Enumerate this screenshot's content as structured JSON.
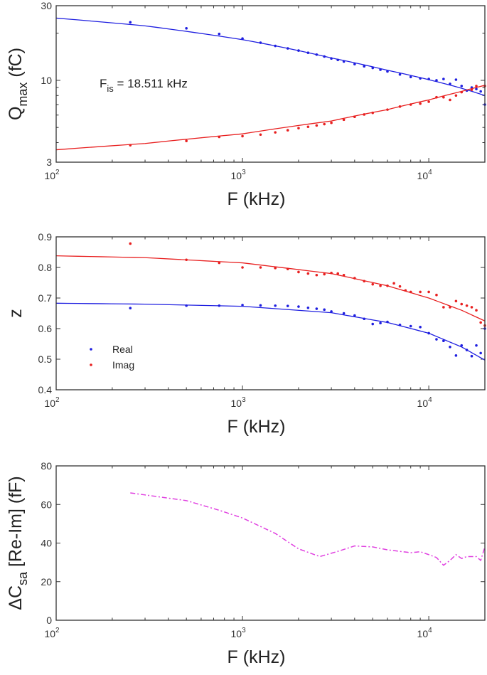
{
  "chart_data": [
    {
      "type": "scatter",
      "xlabel": "F (kHz)",
      "ylabel": {
        "main": "Q",
        "sub": "max",
        "unit": " (fC)"
      },
      "xscale": "log",
      "yscale": "log",
      "xlim": [
        100,
        20000
      ],
      "ylim": [
        3,
        30
      ],
      "xticks": [
        {
          "v": 100,
          "base": "10",
          "exp": "2"
        },
        {
          "v": 1000,
          "base": "10",
          "exp": "3"
        },
        {
          "v": 10000,
          "base": "10",
          "exp": "4"
        }
      ],
      "yticks": [
        "3",
        "10",
        "30"
      ],
      "annotation": {
        "main": "F",
        "sub": "is",
        "rest": " = 18.511 kHz"
      },
      "series": [
        {
          "color": "#1f1fe0",
          "kind": "points",
          "x": [
            250,
            500,
            750,
            1000,
            1250,
            1500,
            1750,
            2000,
            2250,
            2500,
            2750,
            3000,
            3250,
            3500,
            4000,
            4500,
            5000,
            5500,
            6000,
            7000,
            8000,
            9000,
            10000,
            11000,
            12000,
            13000,
            14000,
            15000,
            16000,
            17000,
            18000,
            19000,
            20000
          ],
          "y": [
            23.5,
            21.5,
            19.8,
            18.5,
            17.4,
            16.6,
            16,
            15.5,
            15,
            14.6,
            14.2,
            13.8,
            13.5,
            13.2,
            12.7,
            12.3,
            12,
            11.7,
            11.4,
            10.9,
            10.5,
            10.3,
            10.2,
            10,
            10.2,
            9.5,
            10.1,
            9.2,
            8.6,
            9,
            8.8,
            8.5,
            7
          ]
        },
        {
          "color": "#1f1fe0",
          "kind": "fit",
          "x": [
            100,
            300,
            1000,
            3000,
            6000,
            10000,
            15000,
            20000
          ],
          "y": [
            25,
            22.3,
            18.2,
            13.9,
            11.6,
            10.1,
            8.9,
            8
          ]
        },
        {
          "color": "#e82020",
          "kind": "points",
          "x": [
            250,
            500,
            750,
            1000,
            1250,
            1500,
            1750,
            2000,
            2250,
            2500,
            2750,
            3000,
            3500,
            4000,
            4500,
            5000,
            6000,
            7000,
            8000,
            9000,
            10000,
            11000,
            12000,
            13000,
            14000,
            15000,
            17000,
            18000,
            20000
          ],
          "y": [
            3.85,
            4.1,
            4.35,
            4.4,
            4.5,
            4.65,
            4.8,
            4.95,
            5.05,
            5.15,
            5.25,
            5.35,
            5.6,
            5.85,
            6.05,
            6.2,
            6.5,
            6.8,
            7,
            7.1,
            7.3,
            7.8,
            7.8,
            7.5,
            8,
            8.4,
            8.7,
            9.2,
            9.2
          ]
        },
        {
          "color": "#e82020",
          "kind": "fit",
          "x": [
            100,
            300,
            1000,
            3000,
            6000,
            10000,
            15000,
            20000
          ],
          "y": [
            3.6,
            3.95,
            4.55,
            5.5,
            6.5,
            7.5,
            8.5,
            9.3
          ]
        }
      ]
    },
    {
      "type": "scatter",
      "xlabel": "F (kHz)",
      "ylabel": {
        "main": "z",
        "sub": "",
        "unit": ""
      },
      "xscale": "log",
      "yscale": "linear",
      "xlim": [
        100,
        20000
      ],
      "ylim": [
        0.4,
        0.9
      ],
      "xticks": [
        {
          "v": 100,
          "base": "10",
          "exp": "2"
        },
        {
          "v": 1000,
          "base": "10",
          "exp": "3"
        },
        {
          "v": 10000,
          "base": "10",
          "exp": "4"
        }
      ],
      "yticks": [
        "0.4",
        "0.5",
        "0.6",
        "0.7",
        "0.8",
        "0.9"
      ],
      "legend": {
        "placement": "lower-left",
        "entries": [
          {
            "name": "Real",
            "color": "#1f1fe0"
          },
          {
            "name": "Imag",
            "color": "#e82020"
          }
        ]
      },
      "series": [
        {
          "name": "Real",
          "color": "#1f1fe0",
          "kind": "points",
          "x": [
            250,
            500,
            750,
            1000,
            1250,
            1500,
            1750,
            2000,
            2250,
            2500,
            2750,
            3000,
            3500,
            4000,
            4500,
            5000,
            5500,
            6000,
            7000,
            8000,
            9000,
            10000,
            11000,
            12000,
            13000,
            14000,
            15000,
            16000,
            17000,
            18000,
            19000,
            20000
          ],
          "y": [
            0.667,
            0.675,
            0.675,
            0.677,
            0.676,
            0.675,
            0.674,
            0.672,
            0.668,
            0.665,
            0.662,
            0.656,
            0.65,
            0.643,
            0.632,
            0.615,
            0.618,
            0.622,
            0.612,
            0.608,
            0.605,
            0.585,
            0.565,
            0.56,
            0.54,
            0.512,
            0.545,
            0.53,
            0.51,
            0.545,
            0.52,
            0.6
          ]
        },
        {
          "color": "#1f1fe0",
          "kind": "fit",
          "x": [
            100,
            300,
            1000,
            3000,
            6000,
            10000,
            15000,
            20000
          ],
          "y": [
            0.683,
            0.68,
            0.673,
            0.652,
            0.62,
            0.585,
            0.54,
            0.497
          ]
        },
        {
          "name": "Imag",
          "color": "#e82020",
          "kind": "points",
          "x": [
            250,
            500,
            750,
            1000,
            1250,
            1500,
            1750,
            2000,
            2250,
            2500,
            2750,
            3000,
            3250,
            3500,
            4000,
            4500,
            5000,
            5500,
            6000,
            6500,
            7000,
            7500,
            8000,
            9000,
            10000,
            11000,
            12000,
            13000,
            14000,
            15000,
            16000,
            17000,
            18000,
            19000,
            20000
          ],
          "y": [
            0.878,
            0.825,
            0.815,
            0.8,
            0.8,
            0.798,
            0.795,
            0.785,
            0.78,
            0.775,
            0.778,
            0.782,
            0.78,
            0.775,
            0.765,
            0.755,
            0.745,
            0.74,
            0.74,
            0.748,
            0.738,
            0.725,
            0.72,
            0.72,
            0.72,
            0.71,
            0.67,
            0.67,
            0.69,
            0.68,
            0.675,
            0.67,
            0.66,
            0.62,
            0.61
          ]
        },
        {
          "color": "#e82020",
          "kind": "fit",
          "x": [
            100,
            300,
            1000,
            3000,
            6000,
            10000,
            15000,
            20000
          ],
          "y": [
            0.838,
            0.832,
            0.815,
            0.78,
            0.74,
            0.7,
            0.66,
            0.625
          ]
        }
      ]
    },
    {
      "type": "line",
      "xlabel": "F (kHz)",
      "ylabel": {
        "main": "ΔC",
        "sub": "sa",
        "unit": " [Re-Im] (fF)"
      },
      "xscale": "log",
      "yscale": "linear",
      "xlim": [
        100,
        20000
      ],
      "ylim": [
        0,
        80
      ],
      "xticks": [
        {
          "v": 100,
          "base": "10",
          "exp": "2"
        },
        {
          "v": 1000,
          "base": "10",
          "exp": "3"
        },
        {
          "v": 10000,
          "base": "10",
          "exp": "4"
        }
      ],
      "yticks": [
        "0",
        "20",
        "40",
        "60",
        "80"
      ],
      "series": [
        {
          "color": "#e040e0",
          "kind": "dashdot",
          "x": [
            250,
            500,
            750,
            1000,
            1500,
            2000,
            2600,
            3200,
            4000,
            5000,
            6000,
            8000,
            9000,
            10000,
            11000,
            12000,
            13000,
            14000,
            15000,
            16000,
            18000,
            19000,
            20000
          ],
          "y": [
            66,
            62,
            57,
            53,
            45,
            37,
            33,
            35.5,
            38.5,
            38,
            36.5,
            35,
            35.5,
            34,
            32.5,
            28.5,
            31,
            34,
            32,
            33,
            33,
            31,
            38
          ]
        }
      ]
    }
  ]
}
